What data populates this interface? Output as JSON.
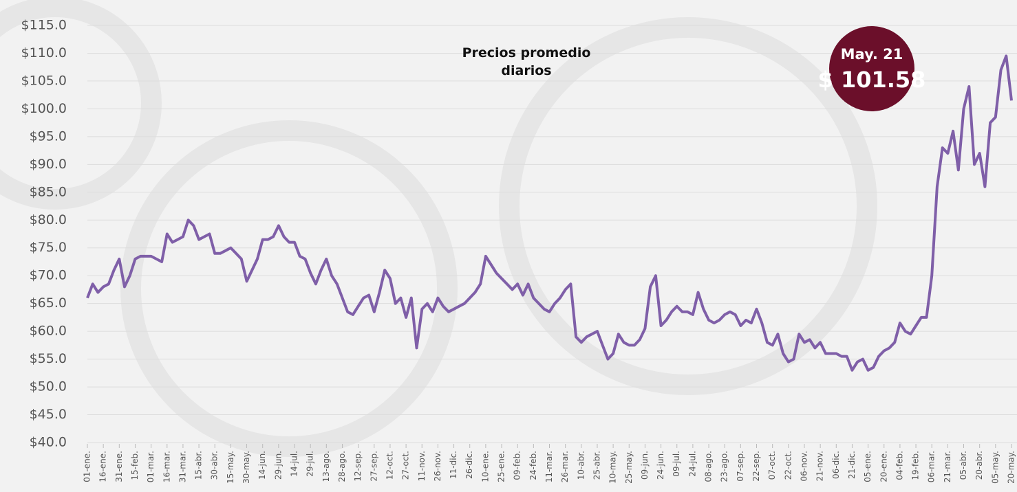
{
  "chart_data": {
    "type": "line",
    "title": "Precios promedio diarios",
    "annotation": {
      "date": "May. 21",
      "price": "$ 101.58"
    },
    "categories": [
      "01-ene.",
      null,
      null,
      "16-ene.",
      null,
      null,
      "31-ene.",
      null,
      null,
      "15-feb.",
      null,
      null,
      "01-mar.",
      null,
      null,
      "16-mar.",
      null,
      null,
      "31-mar.",
      null,
      null,
      "15-abr.",
      null,
      null,
      "30-abr.",
      null,
      null,
      "15-may.",
      null,
      null,
      "30-may.",
      null,
      null,
      "14-jun.",
      null,
      null,
      "29-jun.",
      null,
      null,
      "14-jul.",
      null,
      null,
      "29-jul.",
      null,
      null,
      "13-ago.",
      null,
      null,
      "28-ago.",
      null,
      null,
      "12-sep.",
      null,
      null,
      "27-sep.",
      null,
      null,
      "12-oct.",
      null,
      null,
      "27-oct.",
      null,
      null,
      "11-nov.",
      null,
      null,
      "26-nov.",
      null,
      null,
      "11-dic.",
      null,
      null,
      "26-dic.",
      null,
      null,
      "10-ene.",
      null,
      null,
      "25-ene.",
      null,
      null,
      "09-feb.",
      null,
      null,
      "24-feb.",
      null,
      null,
      "11-mar.",
      null,
      null,
      "26-mar.",
      null,
      null,
      "10-abr.",
      null,
      null,
      "25-abr.",
      null,
      null,
      "10-may.",
      null,
      null,
      "25-may.",
      null,
      null,
      "09-jun.",
      null,
      null,
      "24-jun.",
      null,
      null,
      "09-jul.",
      null,
      null,
      "24-jul.",
      null,
      null,
      "08-ago.",
      null,
      null,
      "23-ago.",
      null,
      null,
      "07-sep.",
      null,
      null,
      "22-sep.",
      null,
      null,
      "07-oct.",
      null,
      null,
      "22-oct.",
      null,
      null,
      "06-nov.",
      null,
      null,
      "21-nov.",
      null,
      null,
      "06-dic.",
      null,
      null,
      "21-dic.",
      null,
      null,
      "05-ene.",
      null,
      null,
      "20-ene.",
      null,
      null,
      "04-feb.",
      null,
      null,
      "19-feb.",
      null,
      null,
      "06-mar.",
      null,
      null,
      "21-mar.",
      null,
      null,
      "05-abr.",
      null,
      null,
      "20-abr.",
      null,
      null,
      "05-may.",
      null,
      null,
      "20-may."
    ],
    "series": [
      {
        "color": "#7f5fa8",
        "values": [
          66,
          68.5,
          67,
          68,
          68.5,
          71,
          73,
          68,
          70,
          73,
          73.5,
          73.5,
          73.5,
          73,
          72.5,
          77.5,
          76,
          76.5,
          77,
          80,
          79,
          76.5,
          77,
          77.5,
          74,
          74,
          74.5,
          75,
          74,
          73,
          69,
          71,
          73,
          76.5,
          76.5,
          77,
          79,
          77,
          76,
          76,
          73.5,
          73,
          70.5,
          68.5,
          71,
          73,
          70,
          68.5,
          66,
          63.5,
          63,
          64.5,
          66,
          66.5,
          63.5,
          67,
          71,
          69.5,
          65,
          66,
          62.5,
          66,
          57,
          64,
          65,
          63.5,
          66,
          64.5,
          63.5,
          64,
          64.5,
          65,
          66,
          67,
          68.5,
          73.5,
          72,
          70.5,
          69.5,
          68.5,
          67.5,
          68.5,
          66.5,
          68.5,
          66,
          65,
          64,
          63.5,
          65,
          66,
          67.5,
          68.5,
          59,
          58,
          59,
          59.5,
          60,
          57.5,
          55,
          56,
          59.5,
          58,
          57.5,
          57.5,
          58.5,
          60.5,
          68,
          70,
          61,
          62,
          63.5,
          64.5,
          63.5,
          63.5,
          63,
          67,
          64,
          62,
          61.5,
          62,
          63,
          63.5,
          63,
          61,
          62,
          61.5,
          64,
          61.5,
          58,
          57.5,
          59.5,
          56,
          54.5,
          55,
          59.5,
          58,
          58.5,
          57,
          58,
          56,
          56,
          56,
          55.5,
          55.5,
          53,
          54.5,
          55,
          53,
          53.5,
          55.5,
          56.5,
          57,
          58,
          61.5,
          60,
          59.5,
          61,
          62.5,
          62.5,
          70,
          86,
          93,
          92,
          96,
          89,
          100,
          104,
          90,
          92,
          86,
          97.5,
          98.5,
          107,
          109.5,
          101.5
        ]
      }
    ],
    "ylim": [
      40,
      115
    ],
    "yticks": [
      {
        "value": 40,
        "label": "$40.0"
      },
      {
        "value": 45,
        "label": "$45.0"
      },
      {
        "value": 50,
        "label": "$50.0"
      },
      {
        "value": 55,
        "label": "$55.0"
      },
      {
        "value": 60,
        "label": "$60.0"
      },
      {
        "value": 65,
        "label": "$65.0"
      },
      {
        "value": 70,
        "label": "$70.0"
      },
      {
        "value": 75,
        "label": "$75.0"
      },
      {
        "value": 80,
        "label": "$80.0"
      },
      {
        "value": 85,
        "label": "$85.0"
      },
      {
        "value": 90,
        "label": "$90.0"
      },
      {
        "value": 95,
        "label": "$95.0"
      },
      {
        "value": 100,
        "label": "$100.0"
      },
      {
        "value": 105,
        "label": "$105.0"
      },
      {
        "value": 110,
        "label": "$110.0"
      },
      {
        "value": 115,
        "label": "$115.0"
      }
    ],
    "grid": true
  }
}
